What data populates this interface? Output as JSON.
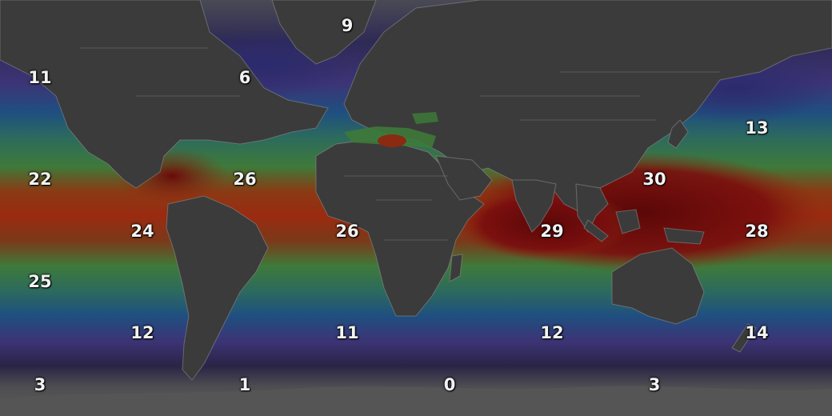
{
  "map": {
    "layer": "sea-surface-temperature",
    "colors": {
      "land": "#3b3b3b",
      "border": "#8a8a8a",
      "polar_ice": "#5a5a5a",
      "ocean_coldest": "#2a2445",
      "ocean_cold": "#3c3476",
      "ocean_cool": "#1f4f80",
      "ocean_mild": "#2c6a5e",
      "ocean_warm": "#3e7a3a",
      "ocean_hot": "#8a3a14",
      "ocean_hottest": "#6e0a0a"
    },
    "labels": [
      {
        "text": "9"
      },
      {
        "text": "11"
      },
      {
        "text": "6"
      },
      {
        "text": "13"
      },
      {
        "text": "22"
      },
      {
        "text": "26"
      },
      {
        "text": "30"
      },
      {
        "text": "24"
      },
      {
        "text": "26"
      },
      {
        "text": "29"
      },
      {
        "text": "28"
      },
      {
        "text": "25"
      },
      {
        "text": "12"
      },
      {
        "text": "11"
      },
      {
        "text": "12"
      },
      {
        "text": "14"
      },
      {
        "text": "3"
      },
      {
        "text": "1"
      },
      {
        "text": "0"
      },
      {
        "text": "3"
      }
    ]
  }
}
